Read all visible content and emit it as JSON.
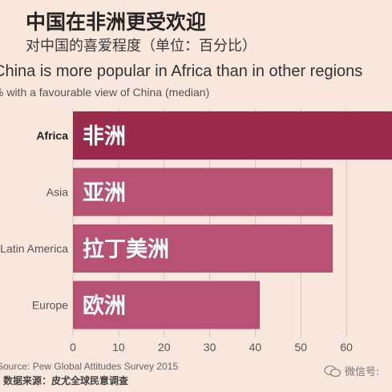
{
  "header": {
    "cn_title": "中国在非洲更受欢迎",
    "cn_subtitle": "对中国的喜爱程度（单位：百分比）",
    "en_title": "China is more popular in Africa than in other regions",
    "en_subtitle": "% with a favourable view of China (median)"
  },
  "footer": {
    "source_en": "Source: Pew Global Attitudes Survey 2015",
    "source_cn": "数据来源：皮尤全球民意调查",
    "watermark": "微信号:"
  },
  "colors": {
    "highlight_bar": "#9b2a4f",
    "bar": "#b85274",
    "background": "#f7e7dd",
    "bar_label": "#ffffff"
  },
  "chart_data": {
    "type": "bar",
    "orientation": "horizontal",
    "categories": [
      "Africa",
      "Asia",
      "Latin America",
      "Europe"
    ],
    "bar_labels_cn": [
      "非洲",
      "亚洲",
      "拉丁美洲",
      "欧洲"
    ],
    "values": [
      70,
      57,
      57,
      41
    ],
    "highlight": "Africa",
    "xlim": [
      0,
      70
    ],
    "xticks": [
      0,
      10,
      20,
      30,
      40,
      50,
      60
    ],
    "title": "China is more popular in Africa than in other regions",
    "subtitle": "% with a favourable view of China (median)",
    "xlabel": "",
    "ylabel": "",
    "grid": true
  }
}
